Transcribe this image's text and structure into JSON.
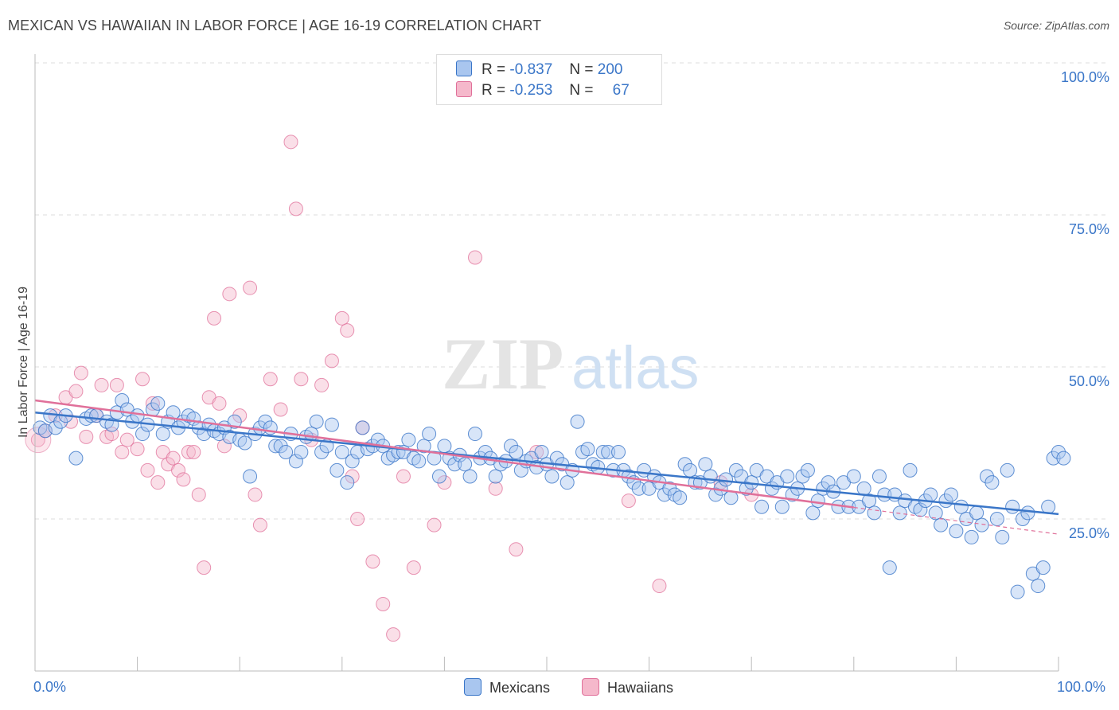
{
  "title": "MEXICAN VS HAWAIIAN IN LABOR FORCE | AGE 16-19 CORRELATION CHART",
  "source": "Source: ZipAtlas.com",
  "colors": {
    "blue": "#3a76c8",
    "blue_fill": "#a9c6ef",
    "pink": "#e0709a",
    "pink_fill": "#f5b8cb"
  },
  "legend": {
    "r_label": "R =",
    "n_label": "N =",
    "rows": [
      {
        "r": "-0.837",
        "n": "200"
      },
      {
        "r": "-0.253",
        "n": "67"
      }
    ]
  },
  "chart_data": {
    "type": "scatter",
    "title": "MEXICAN VS HAWAIIAN IN LABOR FORCE | AGE 16-19 CORRELATION CHART",
    "xlabel": "",
    "ylabel": "In Labor Force | Age 16-19",
    "xlim": [
      0,
      100
    ],
    "ylim": [
      0,
      105
    ],
    "x_tick_labels": [
      "0.0%",
      "100.0%"
    ],
    "y_tick_labels": [
      "100.0%",
      "75.0%",
      "50.0%",
      "25.0%"
    ],
    "y_ticks": [
      100,
      75,
      50,
      25
    ],
    "grid": true,
    "legend_position": "top-center",
    "watermark": "ZIPatlas",
    "series": [
      {
        "name": "Mexicans",
        "color": "#3a76c8",
        "r": -0.837,
        "n": 200,
        "trend": {
          "x": [
            0,
            100
          ],
          "y": [
            42.5,
            25.8
          ]
        },
        "points": [
          [
            0.5,
            40
          ],
          [
            1,
            39.5
          ],
          [
            1.5,
            42
          ],
          [
            2,
            40
          ],
          [
            2.5,
            41
          ],
          [
            3,
            42
          ],
          [
            4,
            35
          ],
          [
            5,
            41.5
          ],
          [
            5.5,
            42
          ],
          [
            6,
            42
          ],
          [
            7,
            41
          ],
          [
            7.5,
            40.5
          ],
          [
            8,
            42.5
          ],
          [
            8.5,
            44.5
          ],
          [
            9,
            43
          ],
          [
            9.5,
            41
          ],
          [
            10,
            42
          ],
          [
            10.5,
            39
          ],
          [
            11,
            40.5
          ],
          [
            11.5,
            43
          ],
          [
            12,
            44
          ],
          [
            12.5,
            39
          ],
          [
            13,
            41
          ],
          [
            13.5,
            42.5
          ],
          [
            14,
            40
          ],
          [
            14.5,
            41
          ],
          [
            15,
            42
          ],
          [
            15.5,
            41.5
          ],
          [
            16,
            40
          ],
          [
            16.5,
            39
          ],
          [
            17,
            40.5
          ],
          [
            17.5,
            39.5
          ],
          [
            18,
            39
          ],
          [
            18.5,
            40
          ],
          [
            19,
            38.5
          ],
          [
            19.5,
            41
          ],
          [
            20,
            38
          ],
          [
            20.5,
            37.5
          ],
          [
            21,
            32
          ],
          [
            21.5,
            39
          ],
          [
            22,
            40
          ],
          [
            22.5,
            41
          ],
          [
            23,
            40
          ],
          [
            23.5,
            37
          ],
          [
            24,
            37
          ],
          [
            24.5,
            36
          ],
          [
            25,
            39
          ],
          [
            25.5,
            34.5
          ],
          [
            26,
            36
          ],
          [
            26.5,
            38.5
          ],
          [
            27,
            39
          ],
          [
            27.5,
            41
          ],
          [
            28,
            36
          ],
          [
            28.5,
            37
          ],
          [
            29,
            40.5
          ],
          [
            29.5,
            33
          ],
          [
            30,
            36
          ],
          [
            30.5,
            31
          ],
          [
            31,
            34.5
          ],
          [
            31.5,
            36
          ],
          [
            32,
            40
          ],
          [
            32.5,
            36.5
          ],
          [
            33,
            37
          ],
          [
            33.5,
            38
          ],
          [
            34,
            37
          ],
          [
            34.5,
            35
          ],
          [
            35,
            35.5
          ],
          [
            35.5,
            36
          ],
          [
            36,
            36
          ],
          [
            36.5,
            38
          ],
          [
            37,
            35
          ],
          [
            37.5,
            34.5
          ],
          [
            38,
            37
          ],
          [
            38.5,
            39
          ],
          [
            39,
            35
          ],
          [
            39.5,
            32
          ],
          [
            40,
            37
          ],
          [
            40.5,
            35
          ],
          [
            41,
            34
          ],
          [
            41.5,
            35.5
          ],
          [
            42,
            34
          ],
          [
            42.5,
            32
          ],
          [
            43,
            39
          ],
          [
            43.5,
            35
          ],
          [
            44,
            36
          ],
          [
            44.5,
            35
          ],
          [
            45,
            32
          ],
          [
            45.5,
            34
          ],
          [
            46,
            34.5
          ],
          [
            46.5,
            37
          ],
          [
            47,
            36
          ],
          [
            47.5,
            33
          ],
          [
            48,
            34.5
          ],
          [
            48.5,
            35
          ],
          [
            49,
            33.5
          ],
          [
            49.5,
            36
          ],
          [
            50,
            34
          ],
          [
            50.5,
            32
          ],
          [
            51,
            35
          ],
          [
            51.5,
            34
          ],
          [
            52,
            31
          ],
          [
            52.5,
            33
          ],
          [
            53,
            41
          ],
          [
            53.5,
            36
          ],
          [
            54,
            36.5
          ],
          [
            54.5,
            34
          ],
          [
            55,
            33.5
          ],
          [
            55.5,
            36
          ],
          [
            56,
            36
          ],
          [
            56.5,
            33
          ],
          [
            57,
            36
          ],
          [
            57.5,
            33
          ],
          [
            58,
            32
          ],
          [
            58.5,
            31
          ],
          [
            59,
            30
          ],
          [
            59.5,
            33
          ],
          [
            60,
            30
          ],
          [
            60.5,
            32
          ],
          [
            61,
            31
          ],
          [
            61.5,
            29
          ],
          [
            62,
            30
          ],
          [
            62.5,
            29
          ],
          [
            63,
            28.5
          ],
          [
            63.5,
            34
          ],
          [
            64,
            33
          ],
          [
            64.5,
            31
          ],
          [
            65,
            31
          ],
          [
            65.5,
            34
          ],
          [
            66,
            32
          ],
          [
            66.5,
            29
          ],
          [
            67,
            30
          ],
          [
            67.5,
            31.5
          ],
          [
            68,
            28.5
          ],
          [
            68.5,
            33
          ],
          [
            69,
            32
          ],
          [
            69.5,
            30
          ],
          [
            70,
            31
          ],
          [
            70.5,
            33
          ],
          [
            71,
            27
          ],
          [
            71.5,
            32
          ],
          [
            72,
            30
          ],
          [
            72.5,
            31
          ],
          [
            73,
            27
          ],
          [
            73.5,
            32
          ],
          [
            74,
            29
          ],
          [
            74.5,
            30
          ],
          [
            75,
            32
          ],
          [
            75.5,
            33
          ],
          [
            76,
            26
          ],
          [
            76.5,
            28
          ],
          [
            77,
            30
          ],
          [
            77.5,
            31
          ],
          [
            78,
            29.5
          ],
          [
            78.5,
            27
          ],
          [
            79,
            31
          ],
          [
            79.5,
            27
          ],
          [
            80,
            32
          ],
          [
            80.5,
            27
          ],
          [
            81,
            30
          ],
          [
            81.5,
            28
          ],
          [
            82,
            26
          ],
          [
            82.5,
            32
          ],
          [
            83,
            29
          ],
          [
            83.5,
            17
          ],
          [
            84,
            29
          ],
          [
            84.5,
            26
          ],
          [
            85,
            28
          ],
          [
            85.5,
            33
          ],
          [
            86,
            27
          ],
          [
            86.5,
            26.5
          ],
          [
            87,
            28
          ],
          [
            87.5,
            29
          ],
          [
            88,
            26
          ],
          [
            88.5,
            24
          ],
          [
            89,
            28
          ],
          [
            89.5,
            29
          ],
          [
            90,
            23
          ],
          [
            90.5,
            27
          ],
          [
            91,
            25
          ],
          [
            91.5,
            22
          ],
          [
            92,
            26
          ],
          [
            92.5,
            24
          ],
          [
            93,
            32
          ],
          [
            93.5,
            31
          ],
          [
            94,
            25
          ],
          [
            94.5,
            22
          ],
          [
            95,
            33
          ],
          [
            95.5,
            27
          ],
          [
            96,
            13
          ],
          [
            96.5,
            25
          ],
          [
            97,
            26
          ],
          [
            97.5,
            16
          ],
          [
            98,
            14
          ],
          [
            98.5,
            17
          ],
          [
            99,
            27
          ],
          [
            99.5,
            35
          ],
          [
            100,
            36
          ],
          [
            100.5,
            35
          ]
        ]
      },
      {
        "name": "Hawaiians",
        "color": "#e0709a",
        "r": -0.253,
        "n": 67,
        "trend": {
          "x": [
            0,
            100
          ],
          "y": [
            44.5,
            22.5
          ]
        },
        "points": [
          [
            0.3,
            38
          ],
          [
            1,
            39.5
          ],
          [
            2,
            42
          ],
          [
            3,
            45
          ],
          [
            3.5,
            41
          ],
          [
            4,
            46
          ],
          [
            4.5,
            49
          ],
          [
            5,
            38.5
          ],
          [
            6,
            42
          ],
          [
            6.5,
            47
          ],
          [
            7,
            38.5
          ],
          [
            7.5,
            39
          ],
          [
            8,
            47
          ],
          [
            8.5,
            36
          ],
          [
            9,
            38
          ],
          [
            10,
            36.5
          ],
          [
            10.5,
            48
          ],
          [
            11,
            33
          ],
          [
            11.5,
            44
          ],
          [
            12,
            31
          ],
          [
            12.5,
            36
          ],
          [
            13,
            34
          ],
          [
            13.5,
            35
          ],
          [
            14,
            33
          ],
          [
            14.5,
            31.5
          ],
          [
            15,
            36
          ],
          [
            15.5,
            36
          ],
          [
            16,
            29
          ],
          [
            16.5,
            17
          ],
          [
            17,
            45
          ],
          [
            17.5,
            58
          ],
          [
            18,
            44
          ],
          [
            18.5,
            37
          ],
          [
            19,
            62
          ],
          [
            20,
            42
          ],
          [
            21,
            63
          ],
          [
            21.5,
            29
          ],
          [
            22,
            24
          ],
          [
            23,
            48
          ],
          [
            24,
            43
          ],
          [
            25,
            87
          ],
          [
            25.5,
            76
          ],
          [
            26,
            48
          ],
          [
            27,
            38
          ],
          [
            28,
            47
          ],
          [
            29,
            51
          ],
          [
            30,
            58
          ],
          [
            30.5,
            56
          ],
          [
            31,
            32
          ],
          [
            31.5,
            25
          ],
          [
            32,
            40
          ],
          [
            33,
            18
          ],
          [
            34,
            11
          ],
          [
            35,
            6
          ],
          [
            36,
            32
          ],
          [
            37,
            17
          ],
          [
            39,
            24
          ],
          [
            40,
            31
          ],
          [
            43,
            68
          ],
          [
            45,
            30
          ],
          [
            47,
            20
          ],
          [
            49,
            36
          ],
          [
            58,
            28
          ],
          [
            61,
            14
          ],
          [
            67,
            31
          ],
          [
            70,
            29
          ]
        ]
      }
    ]
  },
  "bottom_legend": [
    "Mexicans",
    "Hawaiians"
  ],
  "x_ticks_text": {
    "left": "0.0%",
    "right": "100.0%"
  }
}
